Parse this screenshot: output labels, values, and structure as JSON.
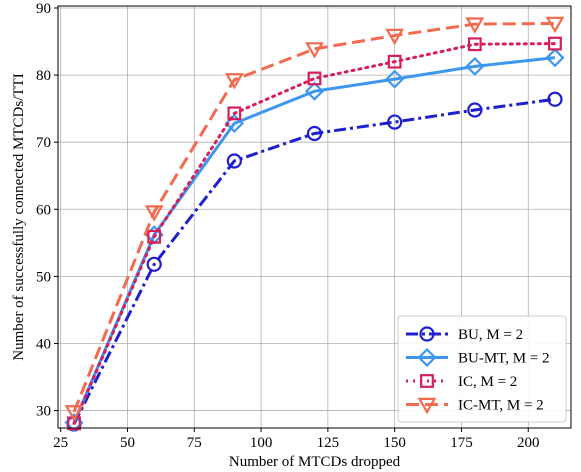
{
  "chart_data": {
    "type": "line",
    "title": "",
    "xlabel": "Number of MTCDs dropped",
    "ylabel": "Number of successfully connected MTCDs/TTI",
    "xlim": [
      24,
      216
    ],
    "ylim": [
      27.4,
      90.3
    ],
    "xticks": [
      25,
      50,
      75,
      100,
      125,
      150,
      175,
      200
    ],
    "yticks": [
      30,
      40,
      50,
      60,
      70,
      80,
      90
    ],
    "grid": true,
    "legend_position": "lower-right",
    "x": [
      30,
      60,
      90,
      120,
      150,
      180,
      210
    ],
    "series": [
      {
        "name": "BU, M = 2",
        "values": [
          28.0,
          51.8,
          67.2,
          71.3,
          73.0,
          74.8,
          76.4
        ],
        "color": "#1f1fd0",
        "dash": "12,4,3,4",
        "marker": "circle"
      },
      {
        "name": "BU-MT, M = 2",
        "values": [
          28.2,
          56.2,
          72.8,
          77.6,
          79.4,
          81.3,
          82.6
        ],
        "color": "#3d96f0",
        "dash": "",
        "marker": "diamond"
      },
      {
        "name": "IC, M = 2",
        "values": [
          28.1,
          55.9,
          74.3,
          79.5,
          82.0,
          84.6,
          84.7
        ],
        "color": "#d61f5a",
        "dash": "2,5",
        "marker": "square"
      },
      {
        "name": "IC-MT, M = 2",
        "values": [
          29.8,
          59.6,
          79.3,
          83.9,
          85.9,
          87.6,
          87.7
        ],
        "color": "#f26a4f",
        "dash": "13,6",
        "marker": "triangle-down"
      }
    ]
  }
}
